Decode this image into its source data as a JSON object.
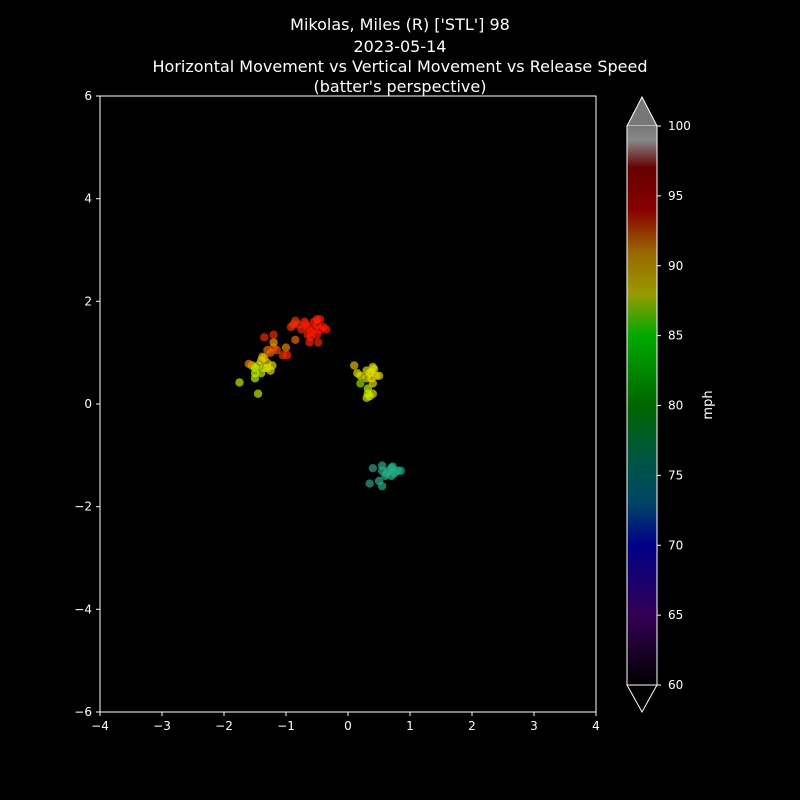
{
  "chart_data": {
    "type": "scatter",
    "title_lines": [
      "Mikolas, Miles (R) ['STL'] 98",
      "2023-05-14",
      "Horizontal Movement vs Vertical Movement vs Release Speed",
      "(batter's perspective)"
    ],
    "xlabel": "",
    "ylabel": "",
    "xlim": [
      -4,
      4
    ],
    "ylim": [
      -6,
      6
    ],
    "x_ticks": [
      -4,
      -3,
      -2,
      -1,
      0,
      1,
      2,
      3,
      4
    ],
    "y_ticks": [
      -6,
      -4,
      -2,
      0,
      2,
      4,
      6
    ],
    "x_tick_labels": [
      "−4",
      "−3",
      "−2",
      "−1",
      "0",
      "1",
      "2",
      "3",
      "4"
    ],
    "y_tick_labels": [
      "−6",
      "−4",
      "−2",
      "0",
      "2",
      "4",
      "6"
    ],
    "grid": false,
    "colorbar": {
      "label": "mph",
      "range": [
        60,
        100
      ],
      "ticks": [
        60,
        65,
        70,
        75,
        80,
        85,
        90,
        95,
        100
      ],
      "tick_labels": [
        "60",
        "65",
        "70",
        "75",
        "80",
        "85",
        "90",
        "95",
        "100"
      ],
      "colors": [
        [
          60,
          "#000000"
        ],
        [
          65,
          "#330055"
        ],
        [
          70,
          "#000088"
        ],
        [
          73,
          "#004466"
        ],
        [
          76,
          "#005544"
        ],
        [
          80,
          "#006600"
        ],
        [
          85,
          "#00aa00"
        ],
        [
          88,
          "#999900"
        ],
        [
          91,
          "#996600"
        ],
        [
          94,
          "#880000"
        ],
        [
          97,
          "#660000"
        ],
        [
          99,
          "#888888"
        ],
        [
          100,
          "#777777"
        ]
      ]
    },
    "points": [
      [
        -0.45,
        1.65,
        96
      ],
      [
        -0.5,
        1.55,
        96
      ],
      [
        -0.55,
        1.45,
        96
      ],
      [
        -0.6,
        1.4,
        96
      ],
      [
        -0.4,
        1.5,
        96
      ],
      [
        -0.65,
        1.5,
        96
      ],
      [
        -0.7,
        1.6,
        95
      ],
      [
        -0.5,
        1.35,
        96
      ],
      [
        -0.6,
        1.3,
        96
      ],
      [
        -0.45,
        1.45,
        96
      ],
      [
        -0.55,
        1.6,
        96
      ],
      [
        -0.35,
        1.45,
        96
      ],
      [
        -0.75,
        1.45,
        95
      ],
      [
        -0.62,
        1.2,
        95
      ],
      [
        -0.48,
        1.2,
        95
      ],
      [
        -0.8,
        1.55,
        95
      ],
      [
        -0.88,
        1.55,
        94
      ],
      [
        -0.92,
        1.5,
        94
      ],
      [
        -0.85,
        1.62,
        94
      ],
      [
        -0.85,
        1.25,
        92
      ],
      [
        -0.65,
        1.35,
        96
      ],
      [
        -0.68,
        1.55,
        96
      ],
      [
        -0.5,
        1.65,
        95
      ],
      [
        -1.35,
        1.3,
        95
      ],
      [
        -1.2,
        1.35,
        95
      ],
      [
        -1.05,
        0.95,
        94
      ],
      [
        -0.98,
        0.95,
        95
      ],
      [
        -1.2,
        1.1,
        93
      ],
      [
        -1.15,
        1.05,
        93
      ],
      [
        -1.25,
        1.0,
        92
      ],
      [
        -1.3,
        1.05,
        92
      ],
      [
        -1.0,
        1.1,
        91
      ],
      [
        -1.2,
        1.2,
        90
      ],
      [
        -1.35,
        0.9,
        89
      ],
      [
        -1.3,
        0.8,
        89
      ],
      [
        -1.4,
        0.85,
        88
      ],
      [
        -1.45,
        0.75,
        88
      ],
      [
        -1.3,
        0.7,
        88
      ],
      [
        -1.25,
        0.65,
        88
      ],
      [
        -1.5,
        0.7,
        86
      ],
      [
        -1.5,
        0.6,
        86
      ],
      [
        -1.55,
        0.75,
        86
      ],
      [
        -1.4,
        0.6,
        87
      ],
      [
        -1.5,
        0.5,
        86
      ],
      [
        -1.6,
        0.78,
        91
      ],
      [
        -1.75,
        0.42,
        87
      ],
      [
        -1.45,
        0.2,
        87
      ],
      [
        -1.38,
        0.92,
        89
      ],
      [
        -1.22,
        0.75,
        88
      ],
      [
        -1.35,
        0.7,
        87
      ],
      [
        0.1,
        0.75,
        89
      ],
      [
        0.15,
        0.6,
        88
      ],
      [
        0.2,
        0.55,
        88
      ],
      [
        0.3,
        0.65,
        88
      ],
      [
        0.35,
        0.6,
        88
      ],
      [
        0.4,
        0.72,
        88
      ],
      [
        0.42,
        0.68,
        88
      ],
      [
        0.38,
        0.5,
        88
      ],
      [
        0.45,
        0.55,
        89
      ],
      [
        0.5,
        0.55,
        88
      ],
      [
        0.4,
        0.4,
        88
      ],
      [
        0.3,
        0.5,
        88
      ],
      [
        0.2,
        0.4,
        85
      ],
      [
        0.32,
        0.3,
        86
      ],
      [
        0.32,
        0.2,
        86
      ],
      [
        0.35,
        0.15,
        86
      ],
      [
        0.4,
        0.2,
        88
      ],
      [
        0.3,
        0.12,
        87
      ],
      [
        0.38,
        0.62,
        88
      ],
      [
        0.55,
        -1.2,
        77
      ],
      [
        0.65,
        -1.3,
        76
      ],
      [
        0.7,
        -1.25,
        76
      ],
      [
        0.75,
        -1.35,
        76
      ],
      [
        0.8,
        -1.3,
        76
      ],
      [
        0.55,
        -1.3,
        77
      ],
      [
        0.6,
        -1.4,
        77
      ],
      [
        0.7,
        -1.4,
        76
      ],
      [
        0.5,
        -1.5,
        77
      ],
      [
        0.55,
        -1.6,
        77
      ],
      [
        0.4,
        -1.25,
        78
      ],
      [
        0.35,
        -1.55,
        78
      ],
      [
        0.85,
        -1.3,
        75
      ],
      [
        0.72,
        -1.22,
        76
      ],
      [
        0.62,
        -1.35,
        77
      ]
    ]
  }
}
